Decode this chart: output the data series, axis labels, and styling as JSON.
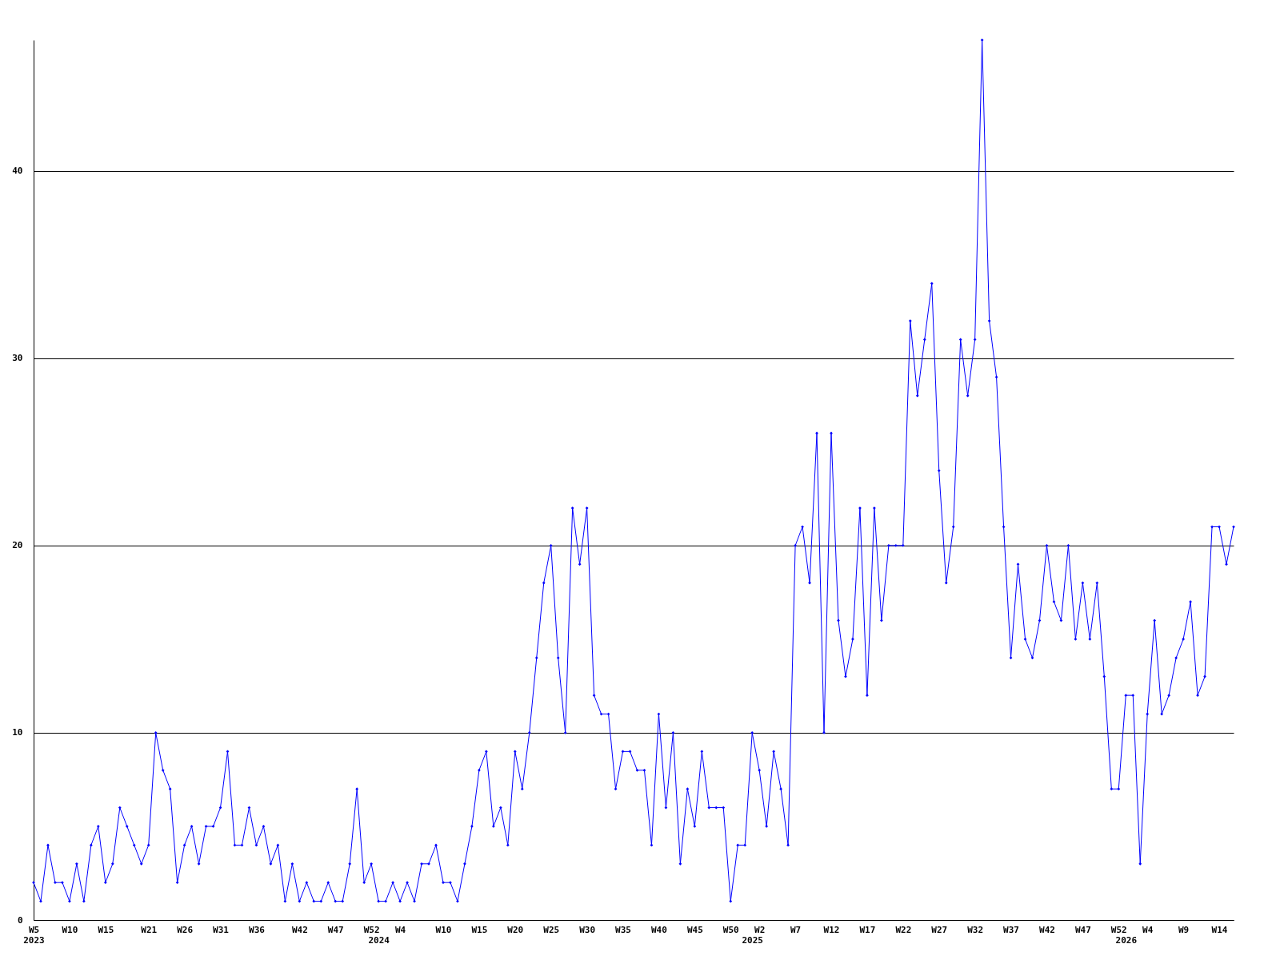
{
  "chart_data": {
    "type": "line",
    "categories": [
      "W5\n2023",
      null,
      null,
      null,
      null,
      "W10",
      null,
      null,
      null,
      null,
      "W15",
      null,
      null,
      null,
      null,
      null,
      "W21",
      null,
      null,
      null,
      null,
      "W26",
      null,
      null,
      null,
      null,
      "W31",
      null,
      null,
      null,
      null,
      "W36",
      null,
      null,
      null,
      null,
      null,
      "W42",
      null,
      null,
      null,
      null,
      "W47",
      null,
      null,
      null,
      null,
      "W52",
      "\n2024",
      null,
      null,
      "W4",
      null,
      null,
      null,
      null,
      null,
      "W10",
      null,
      null,
      null,
      null,
      "W15",
      null,
      null,
      null,
      null,
      "W20",
      null,
      null,
      null,
      null,
      "W25",
      null,
      null,
      null,
      null,
      "W30",
      null,
      null,
      null,
      null,
      "W35",
      null,
      null,
      null,
      null,
      "W40",
      null,
      null,
      null,
      null,
      "W45",
      null,
      null,
      null,
      null,
      "W50",
      null,
      null,
      "\n2025",
      "W2",
      null,
      null,
      null,
      null,
      "W7",
      null,
      null,
      null,
      null,
      "W12",
      null,
      null,
      null,
      null,
      "W17",
      null,
      null,
      null,
      null,
      "W22",
      null,
      null,
      null,
      null,
      "W27",
      null,
      null,
      null,
      null,
      "W32",
      null,
      null,
      null,
      null,
      "W37",
      null,
      null,
      null,
      null,
      "W42",
      null,
      null,
      null,
      null,
      "W47",
      null,
      null,
      null,
      null,
      "W52",
      "\n2026",
      null,
      null,
      "W4",
      null,
      null,
      null,
      null,
      "W9",
      null,
      null,
      null,
      null,
      "W14",
      null,
      null
    ],
    "series": [
      {
        "color": "#0000ff",
        "values": [
          2,
          1,
          4,
          2,
          2,
          1,
          3,
          1,
          4,
          5,
          2,
          3,
          6,
          5,
          4,
          3,
          4,
          10,
          8,
          7,
          2,
          4,
          5,
          3,
          5,
          5,
          6,
          9,
          4,
          4,
          6,
          4,
          5,
          3,
          4,
          1,
          3,
          1,
          2,
          1,
          1,
          2,
          1,
          1,
          3,
          7,
          2,
          3,
          1,
          1,
          2,
          1,
          2,
          1,
          3,
          3,
          4,
          2,
          2,
          1,
          3,
          5,
          8,
          9,
          5,
          6,
          4,
          9,
          7,
          10,
          14,
          18,
          20,
          14,
          10,
          22,
          19,
          22,
          12,
          11,
          11,
          7,
          9,
          9,
          8,
          8,
          4,
          11,
          6,
          10,
          3,
          7,
          5,
          9,
          6,
          6,
          6,
          1,
          4,
          4,
          10,
          8,
          5,
          9,
          7,
          4,
          20,
          21,
          18,
          26,
          10,
          26,
          16,
          13,
          15,
          22,
          12,
          22,
          16,
          20,
          20,
          20,
          32,
          28,
          31,
          34,
          24,
          18,
          21,
          31,
          28,
          31,
          47,
          32,
          29,
          21,
          14,
          19,
          15,
          14,
          16,
          20,
          17,
          16,
          20,
          15,
          18,
          15,
          18,
          13,
          7,
          7,
          12,
          12,
          3,
          11,
          16,
          11,
          12,
          14,
          15,
          17,
          12,
          13,
          21,
          21,
          19,
          21
        ]
      }
    ],
    "ylim": [
      0,
      47
    ],
    "yticks": [
      0,
      10,
      20,
      30,
      40
    ],
    "grid": "y",
    "marker": "diamond",
    "line_style": "solid"
  }
}
